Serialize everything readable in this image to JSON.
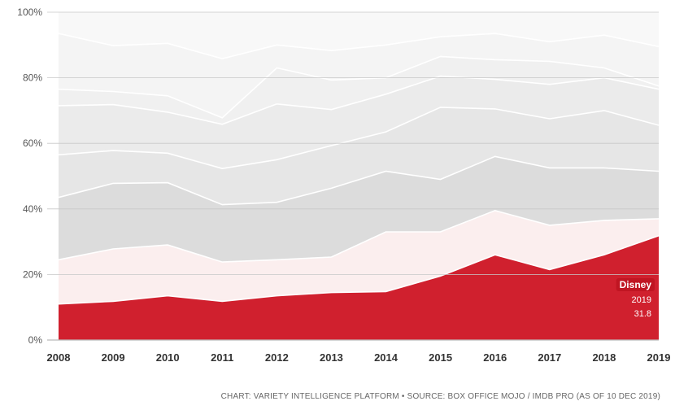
{
  "chart_data": {
    "type": "area",
    "stacked": true,
    "categories": [
      "2008",
      "2009",
      "2010",
      "2011",
      "2012",
      "2013",
      "2014",
      "2015",
      "2016",
      "2017",
      "2018",
      "2019"
    ],
    "ylim": [
      0,
      100
    ],
    "y_ticks": [
      "0%",
      "20%",
      "40%",
      "60%",
      "80%",
      "100%"
    ],
    "grid": true,
    "series": [
      {
        "name": "Disney",
        "color": "#d0202e",
        "values": [
          11,
          11.8,
          13.5,
          11.8,
          13.5,
          14.5,
          14.8,
          19.5,
          26,
          21.5,
          26,
          31.8
        ]
      },
      {
        "color": "#fbeeee",
        "values": [
          13.5,
          16,
          15.5,
          12,
          11,
          10.8,
          18.2,
          13.5,
          13.5,
          13.5,
          10.5,
          5.2
        ]
      },
      {
        "color": "#dcdcdc",
        "values": [
          19,
          20,
          19,
          17.5,
          17.5,
          21,
          18.5,
          16,
          16.5,
          17.5,
          16,
          14.5
        ]
      },
      {
        "color": "#e6e6e6",
        "values": [
          13,
          10,
          9,
          11,
          13,
          13,
          12,
          22,
          14.5,
          15,
          17.5,
          14
        ]
      },
      {
        "color": "#ebebeb",
        "values": [
          15,
          14,
          12.5,
          13.5,
          17,
          11,
          11.5,
          9.5,
          9,
          10.5,
          10,
          11
        ]
      },
      {
        "color": "#f0f0f0",
        "values": [
          5,
          4,
          5,
          2,
          11,
          9,
          5,
          6,
          6,
          7,
          3,
          1
        ]
      },
      {
        "color": "#f4f4f4",
        "values": [
          17,
          14,
          16,
          18,
          7,
          9,
          10,
          6,
          8,
          6,
          10,
          12
        ]
      },
      {
        "color": "#f8f8f8",
        "values": [
          6.5,
          10.2,
          9.5,
          14.2,
          10,
          11.7,
          10,
          7.5,
          6.5,
          9,
          7,
          10.5
        ]
      }
    ],
    "annotation": {
      "name": "Disney",
      "year": "2019",
      "value": "31.8"
    }
  },
  "source": "CHART: VARIETY INTELLIGENCE PLATFORM • SOURCE: BOX OFFICE MOJO / IMDB PRO (AS OF 10 DEC 2019)"
}
